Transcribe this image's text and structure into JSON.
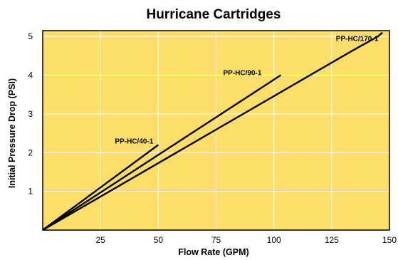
{
  "chart_data": {
    "type": "line",
    "title": "Hurricane Cartridges",
    "xlabel": "Flow Rate (GPM)",
    "ylabel": "Initial Pressure Drop (PSI)",
    "xlim": [
      0,
      150
    ],
    "ylim": [
      0,
      5.15
    ],
    "x_ticks": [
      25,
      50,
      75,
      100,
      125,
      150
    ],
    "y_ticks": [
      1,
      2,
      3,
      4,
      5
    ],
    "grid": true,
    "colors": {
      "plot_background": "#FDDE6A",
      "grid": "#FFFFFF",
      "line": "#000000",
      "frame": "#000000"
    },
    "series": [
      {
        "name": "PP-HC/40-1",
        "x": [
          0,
          50
        ],
        "y": [
          0,
          2.2
        ]
      },
      {
        "name": "PP-HC/90-1",
        "x": [
          0,
          103
        ],
        "y": [
          0,
          4.0
        ]
      },
      {
        "name": "PP-HC/170-1",
        "x": [
          0,
          133,
          145,
          147
        ],
        "y": [
          0,
          4.6,
          5.0,
          5.1
        ]
      }
    ]
  }
}
